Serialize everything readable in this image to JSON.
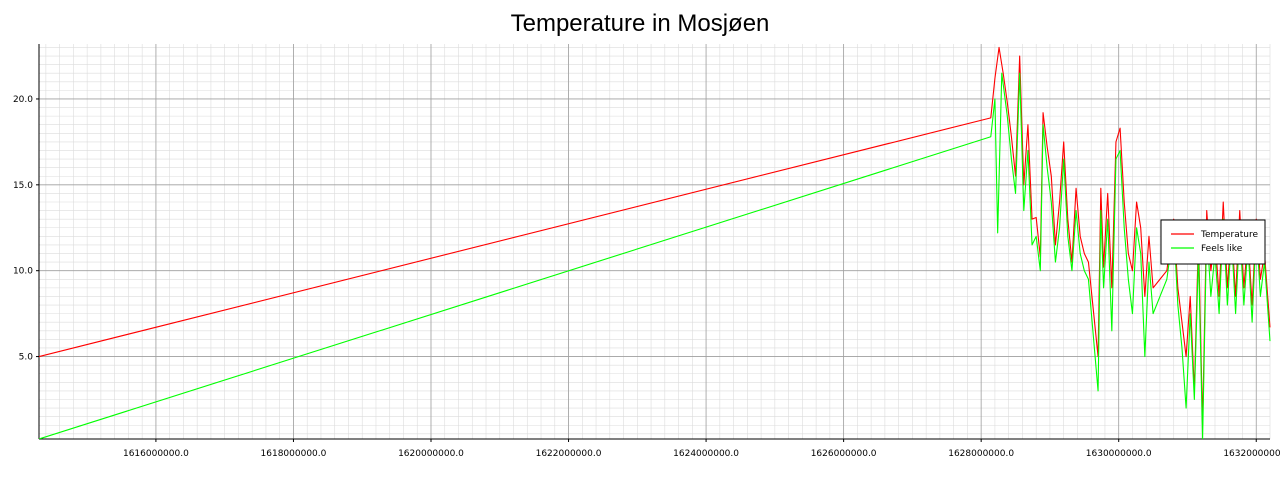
{
  "chart_data": {
    "type": "line",
    "title": "Temperature in Mosjøen",
    "xlabel": "",
    "ylabel": "",
    "xlim": [
      1614300000,
      1632200000
    ],
    "ylim": [
      0.2,
      23.2
    ],
    "x_ticks": [
      1616000000,
      1618000000,
      1620000000,
      1622000000,
      1624000000,
      1626000000,
      1628000000,
      1630000000,
      1632000000
    ],
    "x_tick_labels": [
      "1616000000.0",
      "1618000000.0",
      "1620000000.0",
      "1622000000.0",
      "1624000000.0",
      "1626000000.0",
      "1628000000.0",
      "1630000000.0",
      "1632000000.0"
    ],
    "y_ticks": [
      5,
      10,
      15,
      20
    ],
    "y_tick_labels": [
      "5.0",
      "10.0",
      "15.0",
      "20.0"
    ],
    "grid": true,
    "legend_position": "right",
    "series": [
      {
        "name": "Temperature",
        "color": "#ff0000",
        "points": [
          [
            1614300000,
            5.0
          ],
          [
            1628140000,
            18.9
          ],
          [
            1628200000,
            21.2
          ],
          [
            1628260000,
            23.0
          ],
          [
            1628320000,
            21.5
          ],
          [
            1628380000,
            19.8
          ],
          [
            1628440000,
            17.8
          ],
          [
            1628500000,
            15.5
          ],
          [
            1628560000,
            22.5
          ],
          [
            1628620000,
            15.0
          ],
          [
            1628680000,
            18.5
          ],
          [
            1628740000,
            13.0
          ],
          [
            1628800000,
            13.1
          ],
          [
            1628860000,
            10.8
          ],
          [
            1628900000,
            19.2
          ],
          [
            1628960000,
            17.2
          ],
          [
            1629020000,
            15.5
          ],
          [
            1629080000,
            11.5
          ],
          [
            1629140000,
            14.0
          ],
          [
            1629200000,
            17.5
          ],
          [
            1629260000,
            13.0
          ],
          [
            1629320000,
            10.5
          ],
          [
            1629380000,
            14.8
          ],
          [
            1629440000,
            12.0
          ],
          [
            1629500000,
            11.0
          ],
          [
            1629560000,
            10.5
          ],
          [
            1629700000,
            5.0
          ],
          [
            1629740000,
            14.8
          ],
          [
            1629780000,
            10.2
          ],
          [
            1629840000,
            14.5
          ],
          [
            1629900000,
            9.0
          ],
          [
            1629960000,
            17.5
          ],
          [
            1630020000,
            18.3
          ],
          [
            1630080000,
            14.0
          ],
          [
            1630140000,
            11.0
          ],
          [
            1630200000,
            10.0
          ],
          [
            1630260000,
            14.0
          ],
          [
            1630320000,
            12.5
          ],
          [
            1630380000,
            8.5
          ],
          [
            1630440000,
            12.0
          ],
          [
            1630500000,
            9.0
          ],
          [
            1630600000,
            9.5
          ],
          [
            1630700000,
            10.0
          ],
          [
            1630800000,
            13.0
          ],
          [
            1630860000,
            9.0
          ],
          [
            1630920000,
            7.0
          ],
          [
            1630980000,
            5.0
          ],
          [
            1631040000,
            8.5
          ],
          [
            1631100000,
            3.0
          ],
          [
            1631160000,
            12.0
          ],
          [
            1631220000,
            1.0
          ],
          [
            1631280000,
            13.5
          ],
          [
            1631340000,
            10.0
          ],
          [
            1631400000,
            12.0
          ],
          [
            1631460000,
            8.5
          ],
          [
            1631520000,
            14.0
          ],
          [
            1631580000,
            9.0
          ],
          [
            1631640000,
            12.5
          ],
          [
            1631700000,
            8.5
          ],
          [
            1631760000,
            13.5
          ],
          [
            1631820000,
            9.0
          ],
          [
            1631880000,
            12.0
          ],
          [
            1631940000,
            8.0
          ],
          [
            1632000000,
            13.0
          ],
          [
            1632060000,
            9.5
          ],
          [
            1632120000,
            11.0
          ],
          [
            1632200000,
            6.7
          ]
        ]
      },
      {
        "name": "Feels like",
        "color": "#00ff00",
        "points": [
          [
            1614300000,
            0.2
          ],
          [
            1628140000,
            17.8
          ],
          [
            1628200000,
            20.0
          ],
          [
            1628240000,
            12.2
          ],
          [
            1628300000,
            21.5
          ],
          [
            1628380000,
            19.0
          ],
          [
            1628440000,
            16.5
          ],
          [
            1628500000,
            14.5
          ],
          [
            1628560000,
            21.5
          ],
          [
            1628620000,
            13.5
          ],
          [
            1628680000,
            17.0
          ],
          [
            1628740000,
            11.5
          ],
          [
            1628800000,
            12.0
          ],
          [
            1628860000,
            10.0
          ],
          [
            1628900000,
            18.5
          ],
          [
            1628960000,
            16.0
          ],
          [
            1629020000,
            14.0
          ],
          [
            1629080000,
            10.5
          ],
          [
            1629140000,
            12.5
          ],
          [
            1629200000,
            16.5
          ],
          [
            1629260000,
            12.0
          ],
          [
            1629320000,
            10.0
          ],
          [
            1629380000,
            13.5
          ],
          [
            1629440000,
            11.0
          ],
          [
            1629500000,
            10.0
          ],
          [
            1629560000,
            9.5
          ],
          [
            1629700000,
            3.0
          ],
          [
            1629740000,
            13.5
          ],
          [
            1629780000,
            9.0
          ],
          [
            1629840000,
            13.0
          ],
          [
            1629900000,
            6.5
          ],
          [
            1629960000,
            16.5
          ],
          [
            1630020000,
            17.0
          ],
          [
            1630080000,
            12.5
          ],
          [
            1630140000,
            9.5
          ],
          [
            1630200000,
            7.5
          ],
          [
            1630260000,
            12.5
          ],
          [
            1630320000,
            11.0
          ],
          [
            1630380000,
            5.0
          ],
          [
            1630440000,
            10.5
          ],
          [
            1630500000,
            7.5
          ],
          [
            1630600000,
            8.5
          ],
          [
            1630700000,
            9.5
          ],
          [
            1630800000,
            12.5
          ],
          [
            1630860000,
            8.0
          ],
          [
            1630920000,
            5.5
          ],
          [
            1630980000,
            2.0
          ],
          [
            1631040000,
            7.5
          ],
          [
            1631100000,
            2.5
          ],
          [
            1631160000,
            11.0
          ],
          [
            1631220000,
            0.2
          ],
          [
            1631280000,
            12.5
          ],
          [
            1631340000,
            8.5
          ],
          [
            1631400000,
            11.0
          ],
          [
            1631460000,
            7.5
          ],
          [
            1631520000,
            13.0
          ],
          [
            1631580000,
            8.0
          ],
          [
            1631640000,
            12.0
          ],
          [
            1631700000,
            7.5
          ],
          [
            1631760000,
            12.5
          ],
          [
            1631820000,
            8.0
          ],
          [
            1631880000,
            11.5
          ],
          [
            1631940000,
            7.0
          ],
          [
            1632000000,
            12.5
          ],
          [
            1632060000,
            8.5
          ],
          [
            1632120000,
            10.5
          ],
          [
            1632200000,
            5.9
          ]
        ]
      }
    ]
  }
}
